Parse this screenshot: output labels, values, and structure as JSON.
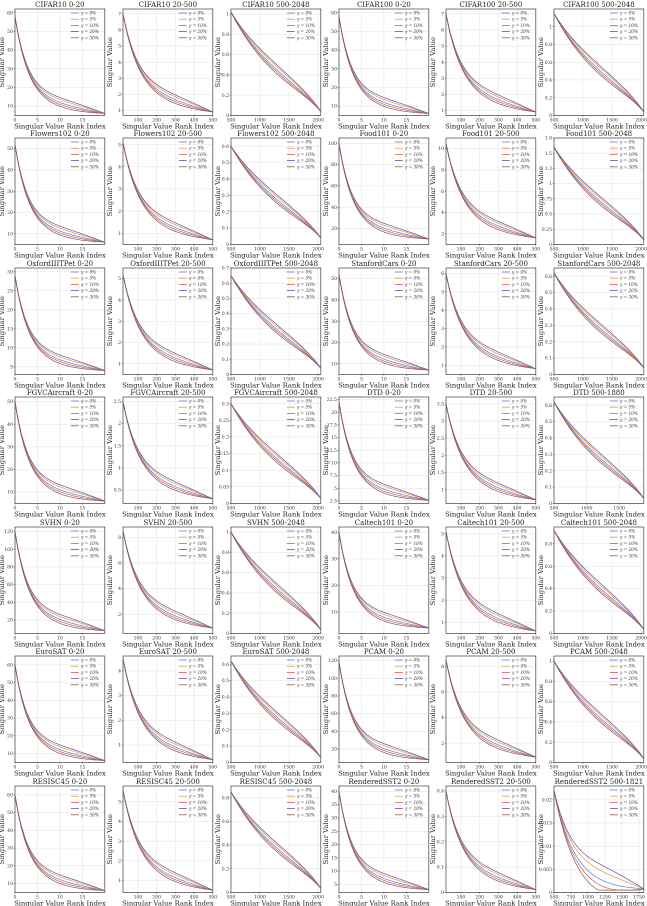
{
  "figure": {
    "xlabel": "Singular Value Rank Index",
    "ylabel": "Singular Value",
    "legend_labels": [
      "γ = 0%",
      "γ = 5%",
      "γ = 10%",
      "γ = 20%",
      "γ = 30%"
    ],
    "series_colors": [
      "#5b7fd6",
      "#e59a3a",
      "#d65b5b",
      "#6a4fa8",
      "#8a5a4a"
    ]
  },
  "chart_data": [
    {
      "type": "line",
      "title": "CIFAR10 0-20",
      "range": [
        0,
        20
      ],
      "x_ticks": [
        0,
        5,
        10,
        15
      ],
      "y_ticks": [
        10,
        20,
        30,
        40,
        50,
        60
      ],
      "ylim": [
        5,
        62
      ],
      "start": 58,
      "end": 6,
      "decay": "head",
      "legend": "top-right"
    },
    {
      "type": "line",
      "title": "CIFAR10 20-500",
      "range": [
        20,
        500
      ],
      "x_ticks": [
        0,
        100,
        200,
        300,
        400,
        500
      ],
      "y_ticks": [
        1,
        2,
        3,
        4,
        5,
        6,
        7
      ],
      "ylim": [
        0.7,
        7.3
      ],
      "start": 7,
      "end": 0.9,
      "decay": "mid",
      "legend": "top-right"
    },
    {
      "type": "line",
      "title": "CIFAR10 500-2048",
      "range": [
        500,
        2048
      ],
      "x_ticks": [
        500,
        1000,
        1500,
        2000
      ],
      "y_ticks": [
        0.0,
        0.2,
        0.4,
        0.6,
        0.8,
        1.0
      ],
      "ylim": [
        0,
        1.05
      ],
      "start": 1.02,
      "end": 0.02,
      "decay": "tail",
      "legend": "top-right"
    },
    {
      "type": "line",
      "title": "CIFAR100 0-20",
      "range": [
        0,
        20
      ],
      "x_ticks": [
        0,
        5,
        10,
        15
      ],
      "y_ticks": [
        10,
        20,
        30,
        40,
        50,
        60
      ],
      "ylim": [
        5,
        62
      ],
      "start": 58,
      "end": 6,
      "decay": "head",
      "legend": "top-right"
    },
    {
      "type": "line",
      "title": "CIFAR100 20-500",
      "range": [
        20,
        500
      ],
      "x_ticks": [
        0,
        100,
        200,
        300,
        400,
        500
      ],
      "y_ticks": [
        1,
        2,
        3,
        4,
        5,
        6,
        7
      ],
      "ylim": [
        0.7,
        7.3
      ],
      "start": 7,
      "end": 0.9,
      "decay": "mid",
      "legend": "top-right"
    },
    {
      "type": "line",
      "title": "CIFAR100 500-2048",
      "range": [
        500,
        2048
      ],
      "x_ticks": [
        500,
        1000,
        1500,
        2000
      ],
      "y_ticks": [
        0.0,
        0.2,
        0.4,
        0.6,
        0.8,
        1.0
      ],
      "ylim": [
        0,
        1.2
      ],
      "start": 1.15,
      "end": 0.02,
      "decay": "tail",
      "legend": "top-right"
    },
    {
      "type": "line",
      "title": "Flowers102 0-20",
      "range": [
        0,
        20
      ],
      "x_ticks": [
        0,
        5,
        10,
        15
      ],
      "y_ticks": [
        10,
        20,
        30,
        40,
        50
      ],
      "ylim": [
        5,
        55
      ],
      "start": 52,
      "end": 6,
      "decay": "head",
      "legend": "top-right"
    },
    {
      "type": "line",
      "title": "Flowers102 20-500",
      "range": [
        20,
        500
      ],
      "x_ticks": [
        0,
        100,
        200,
        300,
        400,
        500
      ],
      "y_ticks": [
        1,
        2,
        3,
        4,
        5
      ],
      "ylim": [
        0.5,
        5.3
      ],
      "start": 5.1,
      "end": 0.7,
      "decay": "mid",
      "legend": "top-right"
    },
    {
      "type": "line",
      "title": "Flowers102 500-2048",
      "range": [
        500,
        2048
      ],
      "x_ticks": [
        500,
        1000,
        1500,
        2000
      ],
      "y_ticks": [
        0.0,
        0.1,
        0.2,
        0.3,
        0.4,
        0.5,
        0.6
      ],
      "ylim": [
        0,
        0.65
      ],
      "start": 0.6,
      "end": 0.03,
      "decay": "tail",
      "legend": "top-right"
    },
    {
      "type": "line",
      "title": "Food101 0-20",
      "range": [
        0,
        20
      ],
      "x_ticks": [
        0,
        5,
        10,
        15
      ],
      "y_ticks": [
        20,
        40,
        60,
        80,
        100
      ],
      "ylim": [
        5,
        105
      ],
      "start": 100,
      "end": 10,
      "decay": "head",
      "legend": "top-right"
    },
    {
      "type": "line",
      "title": "Food101 20-500",
      "range": [
        20,
        500
      ],
      "x_ticks": [
        0,
        100,
        200,
        300,
        400,
        500
      ],
      "y_ticks": [
        2,
        4,
        6,
        8,
        10
      ],
      "ylim": [
        1,
        11
      ],
      "start": 10.5,
      "end": 1.6,
      "decay": "mid",
      "legend": "top-right"
    },
    {
      "type": "line",
      "title": "Food101 500-2048",
      "range": [
        500,
        2048
      ],
      "x_ticks": [
        500,
        1000,
        1500,
        2000
      ],
      "y_ticks": [
        0.0,
        0.25,
        0.5,
        0.75,
        1.0,
        1.25,
        1.5,
        1.75
      ],
      "ylim": [
        0,
        1.75
      ],
      "start": 1.6,
      "end": 0.05,
      "decay": "tail",
      "legend": "top-right"
    },
    {
      "type": "line",
      "title": "OxfordIIITPet 0-20",
      "range": [
        0,
        20
      ],
      "x_ticks": [
        0,
        5,
        10,
        15
      ],
      "y_ticks": [
        5,
        10,
        15,
        20,
        25,
        30
      ],
      "ylim": [
        3,
        31
      ],
      "start": 29,
      "end": 4,
      "decay": "head",
      "legend": "top-right"
    },
    {
      "type": "line",
      "title": "OxfordIIITPet 20-500",
      "range": [
        20,
        500
      ],
      "x_ticks": [
        0,
        100,
        200,
        300,
        400,
        500
      ],
      "y_ticks": [
        1,
        2,
        3,
        4,
        5
      ],
      "ylim": [
        0.5,
        5.5
      ],
      "start": 5.2,
      "end": 0.7,
      "decay": "mid",
      "legend": "top-right"
    },
    {
      "type": "line",
      "title": "OxfordIIITPet 500-2048",
      "range": [
        500,
        2048
      ],
      "x_ticks": [
        500,
        1000,
        1500,
        2000
      ],
      "y_ticks": [
        0.0,
        0.1,
        0.2,
        0.3,
        0.4,
        0.5,
        0.6,
        0.7
      ],
      "ylim": [
        0,
        0.7
      ],
      "start": 0.65,
      "end": 0.03,
      "decay": "tail",
      "legend": "top-right"
    },
    {
      "type": "line",
      "title": "StanfordCars 0-20",
      "range": [
        0,
        20
      ],
      "x_ticks": [
        0,
        5,
        10,
        15
      ],
      "y_ticks": [
        10,
        20,
        30,
        40,
        50
      ],
      "ylim": [
        5,
        55
      ],
      "start": 52,
      "end": 7,
      "decay": "head",
      "legend": "top-right"
    },
    {
      "type": "line",
      "title": "StanfordCars 20-500",
      "range": [
        20,
        500
      ],
      "x_ticks": [
        0,
        100,
        200,
        300,
        400,
        500
      ],
      "y_ticks": [
        1,
        2,
        3,
        4,
        5,
        6
      ],
      "ylim": [
        0.5,
        6.3
      ],
      "start": 6,
      "end": 0.8,
      "decay": "mid",
      "legend": "top-right"
    },
    {
      "type": "line",
      "title": "StanfordCars 500-2048",
      "range": [
        500,
        2048
      ],
      "x_ticks": [
        500,
        1000,
        1500,
        2000
      ],
      "y_ticks": [
        0.0,
        0.1,
        0.2,
        0.3,
        0.4,
        0.5,
        0.6
      ],
      "ylim": [
        0,
        0.65
      ],
      "start": 0.62,
      "end": 0.03,
      "decay": "tail",
      "legend": "top-right"
    },
    {
      "type": "line",
      "title": "FGVCAircraft 0-20",
      "range": [
        0,
        20
      ],
      "x_ticks": [
        0,
        5,
        10,
        15
      ],
      "y_ticks": [
        10,
        20,
        30,
        40,
        50
      ],
      "ylim": [
        5,
        52
      ],
      "start": 50,
      "end": 6,
      "decay": "head",
      "legend": "top-right"
    },
    {
      "type": "line",
      "title": "FGVCAircraft 20-500",
      "range": [
        20,
        500
      ],
      "x_ticks": [
        0,
        100,
        200,
        300,
        400,
        500
      ],
      "y_ticks": [
        0.5,
        1.0,
        1.5,
        2.0,
        2.5
      ],
      "ylim": [
        0.2,
        2.6
      ],
      "start": 2.5,
      "end": 0.3,
      "decay": "mid",
      "legend": "top-right"
    },
    {
      "type": "line",
      "title": "FGVCAircraft 500-2048",
      "range": [
        500,
        2048
      ],
      "x_ticks": [
        500,
        1000,
        1500,
        2000
      ],
      "y_ticks": [
        0.0,
        0.05,
        0.1,
        0.15,
        0.2,
        0.25,
        0.3
      ],
      "ylim": [
        0,
        0.32
      ],
      "start": 0.3,
      "end": 0.01,
      "decay": "tail",
      "legend": "top-right"
    },
    {
      "type": "line",
      "title": "DTD 0-20",
      "range": [
        0,
        20
      ],
      "x_ticks": [
        0,
        5,
        10,
        15
      ],
      "y_ticks": [
        2.5,
        5.0,
        7.5,
        10.0,
        12.5,
        15.0,
        17.5,
        20.0,
        22.5
      ],
      "ylim": [
        2,
        23
      ],
      "start": 22,
      "end": 2.6,
      "decay": "head",
      "legend": "top-right"
    },
    {
      "type": "line",
      "title": "DTD 20-500",
      "range": [
        20,
        500
      ],
      "x_ticks": [
        0,
        100,
        200,
        300,
        400,
        500
      ],
      "y_ticks": [
        1.0,
        1.5,
        2.0,
        2.5,
        3.0,
        3.5
      ],
      "ylim": [
        0.6,
        3.7
      ],
      "start": 3.5,
      "end": 0.7,
      "decay": "mid",
      "legend": "top-right"
    },
    {
      "type": "line",
      "title": "DTD 500-1880",
      "range": [
        500,
        1880
      ],
      "x_ticks": [
        500,
        1000,
        1500
      ],
      "y_ticks": [
        0.0,
        0.1,
        0.2,
        0.3,
        0.4,
        0.5,
        0.6
      ],
      "ylim": [
        0,
        0.65
      ],
      "start": 0.62,
      "end": 0.02,
      "decay": "tail",
      "legend": "top-right"
    },
    {
      "type": "line",
      "title": "SVHN 0-20",
      "range": [
        0,
        20
      ],
      "x_ticks": [
        0,
        5,
        10,
        15
      ],
      "y_ticks": [
        20,
        40,
        60,
        80,
        100,
        120
      ],
      "ylim": [
        5,
        125
      ],
      "start": 120,
      "end": 8,
      "decay": "head",
      "legend": "top-right"
    },
    {
      "type": "line",
      "title": "SVHN 20-500",
      "range": [
        20,
        500
      ],
      "x_ticks": [
        0,
        100,
        200,
        300,
        400,
        500
      ],
      "y_ticks": [
        2,
        4,
        6,
        8
      ],
      "ylim": [
        0.5,
        8.8
      ],
      "start": 8.5,
      "end": 0.9,
      "decay": "mid",
      "legend": "top-right"
    },
    {
      "type": "line",
      "title": "SVHN 500-2048",
      "range": [
        500,
        2048
      ],
      "x_ticks": [
        500,
        1000,
        1500,
        2000
      ],
      "y_ticks": [
        0.0,
        0.2,
        0.4,
        0.6,
        0.8,
        1.0
      ],
      "ylim": [
        0,
        1.05
      ],
      "start": 1.0,
      "end": 0.02,
      "decay": "tail",
      "legend": "top-right"
    },
    {
      "type": "line",
      "title": "Caltech101 0-20",
      "range": [
        0,
        20
      ],
      "x_ticks": [
        0,
        5,
        10,
        15
      ],
      "y_ticks": [
        10,
        20,
        30,
        40
      ],
      "ylim": [
        2,
        42
      ],
      "start": 40,
      "end": 4,
      "decay": "head",
      "legend": "top-right"
    },
    {
      "type": "line",
      "title": "Caltech101 20-500",
      "range": [
        20,
        500
      ],
      "x_ticks": [
        0,
        100,
        200,
        300,
        400,
        500
      ],
      "y_ticks": [
        1,
        2,
        3,
        4,
        5
      ],
      "ylim": [
        0.5,
        5.3
      ],
      "start": 5.1,
      "end": 0.6,
      "decay": "mid",
      "legend": "top-right"
    },
    {
      "type": "line",
      "title": "Caltech101 500-2048",
      "range": [
        500,
        2048
      ],
      "x_ticks": [
        500,
        1000,
        1500,
        2000
      ],
      "y_ticks": [
        0.0,
        0.2,
        0.4,
        0.6,
        0.8
      ],
      "ylim": [
        0,
        0.95
      ],
      "start": 0.92,
      "end": 0.02,
      "decay": "tail",
      "legend": "top-right"
    },
    {
      "type": "line",
      "title": "EuroSAT 0-20",
      "range": [
        0,
        20
      ],
      "x_ticks": [
        0,
        5,
        10,
        15
      ],
      "y_ticks": [
        10,
        20,
        30,
        40,
        50,
        60
      ],
      "ylim": [
        5,
        65
      ],
      "start": 60,
      "end": 6,
      "decay": "head",
      "legend": "top-right"
    },
    {
      "type": "line",
      "title": "EuroSAT 20-500",
      "range": [
        20,
        500
      ],
      "x_ticks": [
        0,
        100,
        200,
        300,
        400,
        500
      ],
      "y_ticks": [
        1,
        2,
        3,
        4
      ],
      "ylim": [
        0.3,
        4.6
      ],
      "start": 4.5,
      "end": 0.4,
      "decay": "mid",
      "legend": "top-right"
    },
    {
      "type": "line",
      "title": "EuroSAT 500-2048",
      "range": [
        500,
        2048
      ],
      "x_ticks": [
        500,
        1000,
        1500,
        2000
      ],
      "y_ticks": [
        0.0,
        0.1,
        0.2,
        0.3,
        0.4,
        0.5,
        0.6
      ],
      "ylim": [
        0,
        0.65
      ],
      "start": 0.62,
      "end": 0.02,
      "decay": "tail",
      "legend": "top-right"
    },
    {
      "type": "line",
      "title": "PCAM 0-20",
      "range": [
        0,
        20
      ],
      "x_ticks": [
        0,
        5,
        10,
        15
      ],
      "y_ticks": [
        20,
        40,
        60,
        80,
        100,
        120
      ],
      "ylim": [
        5,
        125
      ],
      "start": 118,
      "end": 8,
      "decay": "head",
      "legend": "top-right"
    },
    {
      "type": "line",
      "title": "PCAM 20-500",
      "range": [
        20,
        500
      ],
      "x_ticks": [
        0,
        100,
        200,
        300,
        400,
        500
      ],
      "y_ticks": [
        2,
        4,
        6,
        8
      ],
      "ylim": [
        0.5,
        8.8
      ],
      "start": 8.5,
      "end": 0.9,
      "decay": "mid",
      "legend": "top-right"
    },
    {
      "type": "line",
      "title": "PCAM 500-2048",
      "range": [
        500,
        2048
      ],
      "x_ticks": [
        500,
        1000,
        1500,
        2000
      ],
      "y_ticks": [
        0.0,
        0.2,
        0.4,
        0.6,
        0.8,
        1.0
      ],
      "ylim": [
        0,
        1.05
      ],
      "start": 1.0,
      "end": 0.02,
      "decay": "tail",
      "legend": "top-right"
    },
    {
      "type": "line",
      "title": "RESISC45 0-20",
      "range": [
        0,
        20
      ],
      "x_ticks": [
        0,
        5,
        10,
        15
      ],
      "y_ticks": [
        10,
        20,
        30,
        40,
        50,
        60
      ],
      "ylim": [
        5,
        65
      ],
      "start": 60,
      "end": 6,
      "decay": "head",
      "legend": "top-right"
    },
    {
      "type": "line",
      "title": "RESISC45 20-500",
      "range": [
        20,
        500
      ],
      "x_ticks": [
        0,
        100,
        200,
        300,
        400,
        500
      ],
      "y_ticks": [
        1,
        2,
        3,
        4,
        5
      ],
      "ylim": [
        0.4,
        5.8
      ],
      "start": 5.6,
      "end": 0.5,
      "decay": "mid",
      "legend": "top-right"
    },
    {
      "type": "line",
      "title": "RESISC45 500-2048",
      "range": [
        500,
        2048
      ],
      "x_ticks": [
        500,
        1000,
        1500,
        2000
      ],
      "y_ticks": [
        0.0,
        0.2,
        0.4,
        0.6,
        0.8
      ],
      "ylim": [
        0,
        0.9
      ],
      "start": 0.85,
      "end": 0.02,
      "decay": "tail",
      "legend": "top-right"
    },
    {
      "type": "line",
      "title": "RenderedSST2 0-20",
      "range": [
        0,
        20
      ],
      "x_ticks": [
        0,
        5,
        10,
        15
      ],
      "y_ticks": [
        5,
        10,
        15,
        20,
        25,
        30,
        35,
        40
      ],
      "ylim": [
        2,
        42
      ],
      "start": 40,
      "end": 3,
      "decay": "head",
      "legend": "top-right"
    },
    {
      "type": "line",
      "title": "RenderedSST2 20-500",
      "range": [
        20,
        500
      ],
      "x_ticks": [
        0,
        100,
        200,
        300,
        400,
        500
      ],
      "y_ticks": [
        0.0,
        0.1,
        0.2,
        0.3,
        0.4
      ],
      "ylim": [
        0,
        0.42
      ],
      "start": 0.4,
      "end": 0.01,
      "decay": "mid",
      "legend": "top-right"
    },
    {
      "type": "line",
      "title": "RenderedSST2 500-1821",
      "range": [
        500,
        1821
      ],
      "x_ticks": [
        500,
        750,
        1000,
        1250,
        1500,
        1750
      ],
      "y_ticks": [
        0.0,
        0.005,
        0.01,
        0.015,
        0.02
      ],
      "ylim": [
        0,
        0.023
      ],
      "start": 0.022,
      "end": 0.0005,
      "decay": "sst",
      "legend": "top-right"
    }
  ]
}
